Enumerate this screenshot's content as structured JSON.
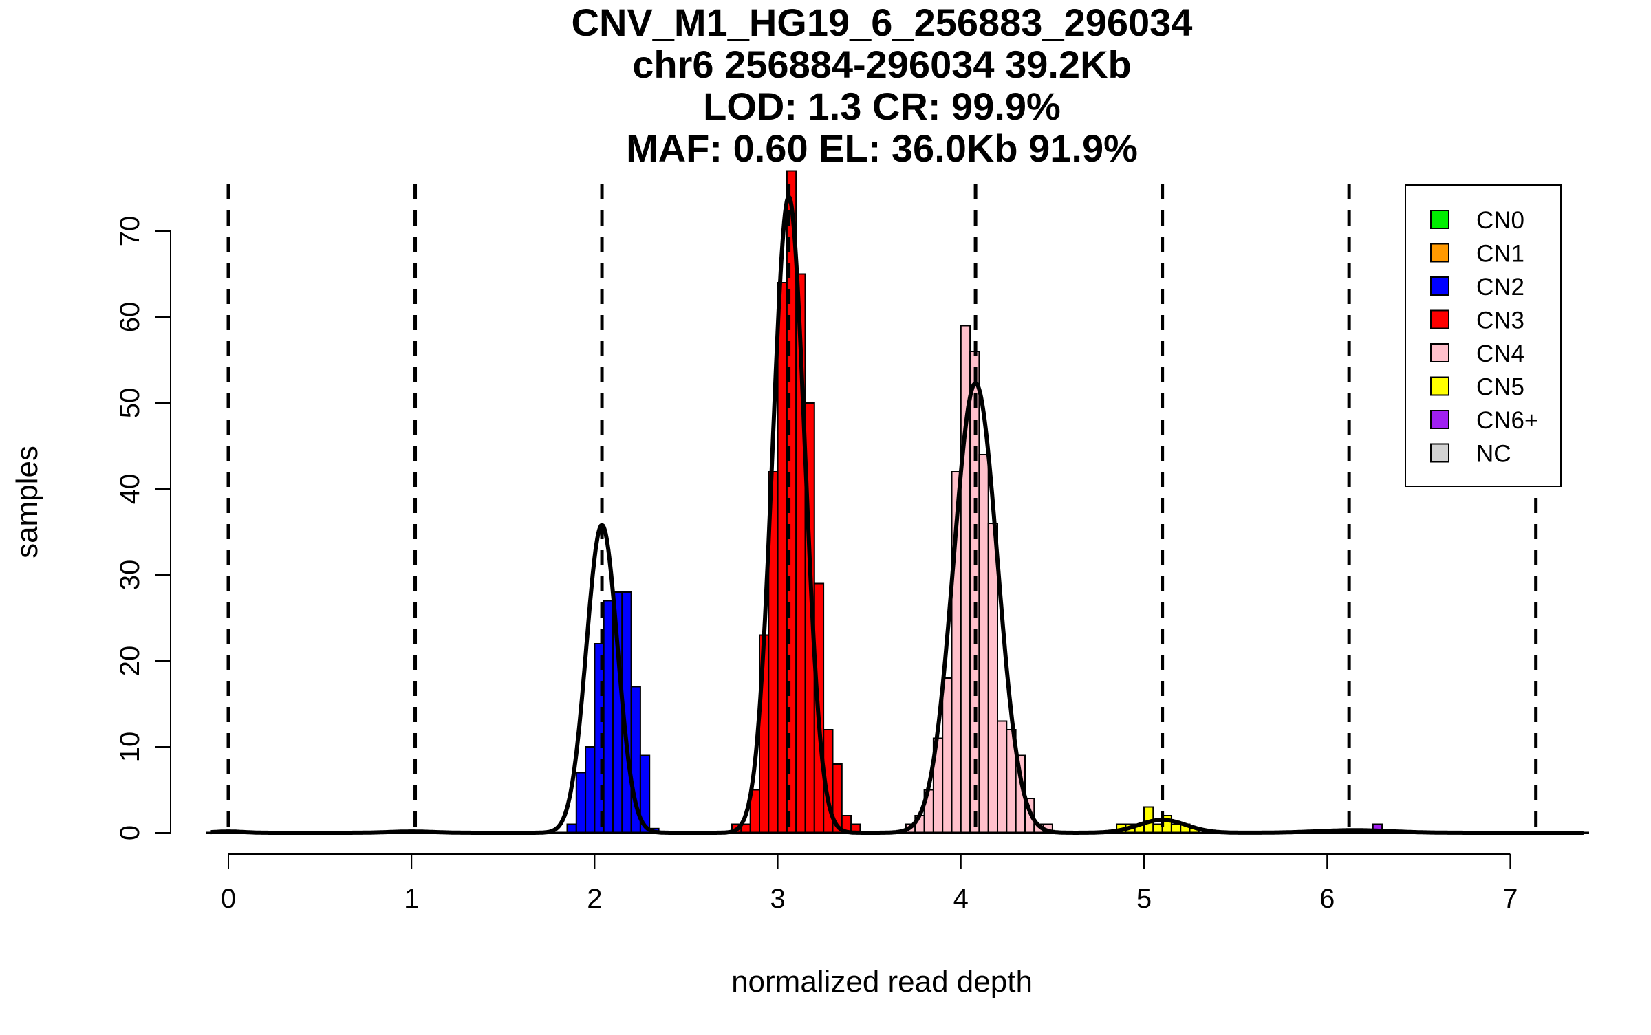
{
  "title_lines": [
    "CNV_M1_HG19_6_256883_296034",
    "chr6 256884-296034 39.2Kb",
    "LOD: 1.3 CR: 99.9%",
    "MAF: 0.60 EL: 36.0Kb 91.9%"
  ],
  "chart_data": {
    "type": "bar",
    "subtype": "histogram",
    "xlabel": "normalized read depth",
    "ylabel": "samples",
    "xlim": [
      -0.1,
      7.4
    ],
    "ylim": [
      0,
      75
    ],
    "x_ticks": [
      0,
      1,
      2,
      3,
      4,
      5,
      6,
      7
    ],
    "x_tick_labels": [
      "0",
      "1",
      "2",
      "3",
      "4",
      "5",
      "6",
      "7"
    ],
    "y_ticks": [
      0,
      10,
      20,
      30,
      40,
      50,
      60,
      70
    ],
    "y_tick_labels": [
      "0",
      "10",
      "20",
      "30",
      "40",
      "50",
      "60",
      "70"
    ],
    "grid": false,
    "legend_position": "top-right",
    "legend": [
      {
        "label": "CN0",
        "color": "#00ee00"
      },
      {
        "label": "CN1",
        "color": "#ff9900"
      },
      {
        "label": "CN2",
        "color": "#0000ff"
      },
      {
        "label": "CN3",
        "color": "#ff0000"
      },
      {
        "label": "CN4",
        "color": "#ffc0cb"
      },
      {
        "label": "CN5",
        "color": "#ffff00"
      },
      {
        "label": "CN6+",
        "color": "#a020f0"
      },
      {
        "label": "NC",
        "color": "#d3d3d3"
      }
    ],
    "bin_width": 0.05,
    "series": [
      {
        "legend_index": 2,
        "color": "#0000ff",
        "bins": [
          {
            "x": 1.85,
            "y": 1
          },
          {
            "x": 1.9,
            "y": 7
          },
          {
            "x": 1.95,
            "y": 10
          },
          {
            "x": 2.0,
            "y": 22
          },
          {
            "x": 2.05,
            "y": 27
          },
          {
            "x": 2.1,
            "y": 28
          },
          {
            "x": 2.15,
            "y": 28
          },
          {
            "x": 2.2,
            "y": 17
          },
          {
            "x": 2.25,
            "y": 9
          },
          {
            "x": 2.3,
            "y": 0.5
          }
        ]
      },
      {
        "legend_index": 3,
        "color": "#ff0000",
        "bins": [
          {
            "x": 2.75,
            "y": 1
          },
          {
            "x": 2.8,
            "y": 1
          },
          {
            "x": 2.85,
            "y": 5
          },
          {
            "x": 2.9,
            "y": 23
          },
          {
            "x": 2.95,
            "y": 42
          },
          {
            "x": 3.0,
            "y": 64
          },
          {
            "x": 3.05,
            "y": 77
          },
          {
            "x": 3.1,
            "y": 65
          },
          {
            "x": 3.15,
            "y": 50
          },
          {
            "x": 3.2,
            "y": 29
          },
          {
            "x": 3.25,
            "y": 12
          },
          {
            "x": 3.3,
            "y": 8
          },
          {
            "x": 3.35,
            "y": 2
          },
          {
            "x": 3.4,
            "y": 1
          }
        ]
      },
      {
        "legend_index": 4,
        "color": "#ffc0cb",
        "bins": [
          {
            "x": 3.7,
            "y": 1
          },
          {
            "x": 3.75,
            "y": 2
          },
          {
            "x": 3.8,
            "y": 5
          },
          {
            "x": 3.85,
            "y": 11
          },
          {
            "x": 3.9,
            "y": 18
          },
          {
            "x": 3.95,
            "y": 42
          },
          {
            "x": 4.0,
            "y": 59
          },
          {
            "x": 4.05,
            "y": 56
          },
          {
            "x": 4.1,
            "y": 44
          },
          {
            "x": 4.15,
            "y": 36
          },
          {
            "x": 4.2,
            "y": 13
          },
          {
            "x": 4.25,
            "y": 12
          },
          {
            "x": 4.3,
            "y": 9
          },
          {
            "x": 4.35,
            "y": 4
          },
          {
            "x": 4.4,
            "y": 1
          },
          {
            "x": 4.45,
            "y": 1
          }
        ]
      },
      {
        "legend_index": 5,
        "color": "#ffff00",
        "bins": [
          {
            "x": 4.85,
            "y": 1
          },
          {
            "x": 4.9,
            "y": 1
          },
          {
            "x": 4.95,
            "y": 1
          },
          {
            "x": 5.0,
            "y": 3
          },
          {
            "x": 5.05,
            "y": 1
          },
          {
            "x": 5.1,
            "y": 2
          },
          {
            "x": 5.15,
            "y": 1
          },
          {
            "x": 5.2,
            "y": 1
          },
          {
            "x": 5.25,
            "y": 0.5
          }
        ]
      },
      {
        "legend_index": 6,
        "color": "#a020f0",
        "bins": [
          {
            "x": 6.25,
            "y": 1
          }
        ]
      }
    ],
    "fitted_curves": [
      {
        "mean": 0.0,
        "sd": 0.08,
        "peak": 0.15
      },
      {
        "mean": 1.0,
        "sd": 0.12,
        "peak": 0.15
      },
      {
        "mean": 2.04,
        "sd": 0.085,
        "peak": 35.8
      },
      {
        "mean": 3.06,
        "sd": 0.088,
        "peak": 74
      },
      {
        "mean": 4.08,
        "sd": 0.12,
        "peak": 52.3
      },
      {
        "mean": 5.1,
        "sd": 0.13,
        "peak": 1.5
      },
      {
        "mean": 6.15,
        "sd": 0.2,
        "peak": 0.3
      }
    ],
    "cutoff_lines": [
      0.0,
      1.02,
      2.04,
      3.06,
      4.08,
      5.1,
      6.12,
      7.14
    ]
  }
}
